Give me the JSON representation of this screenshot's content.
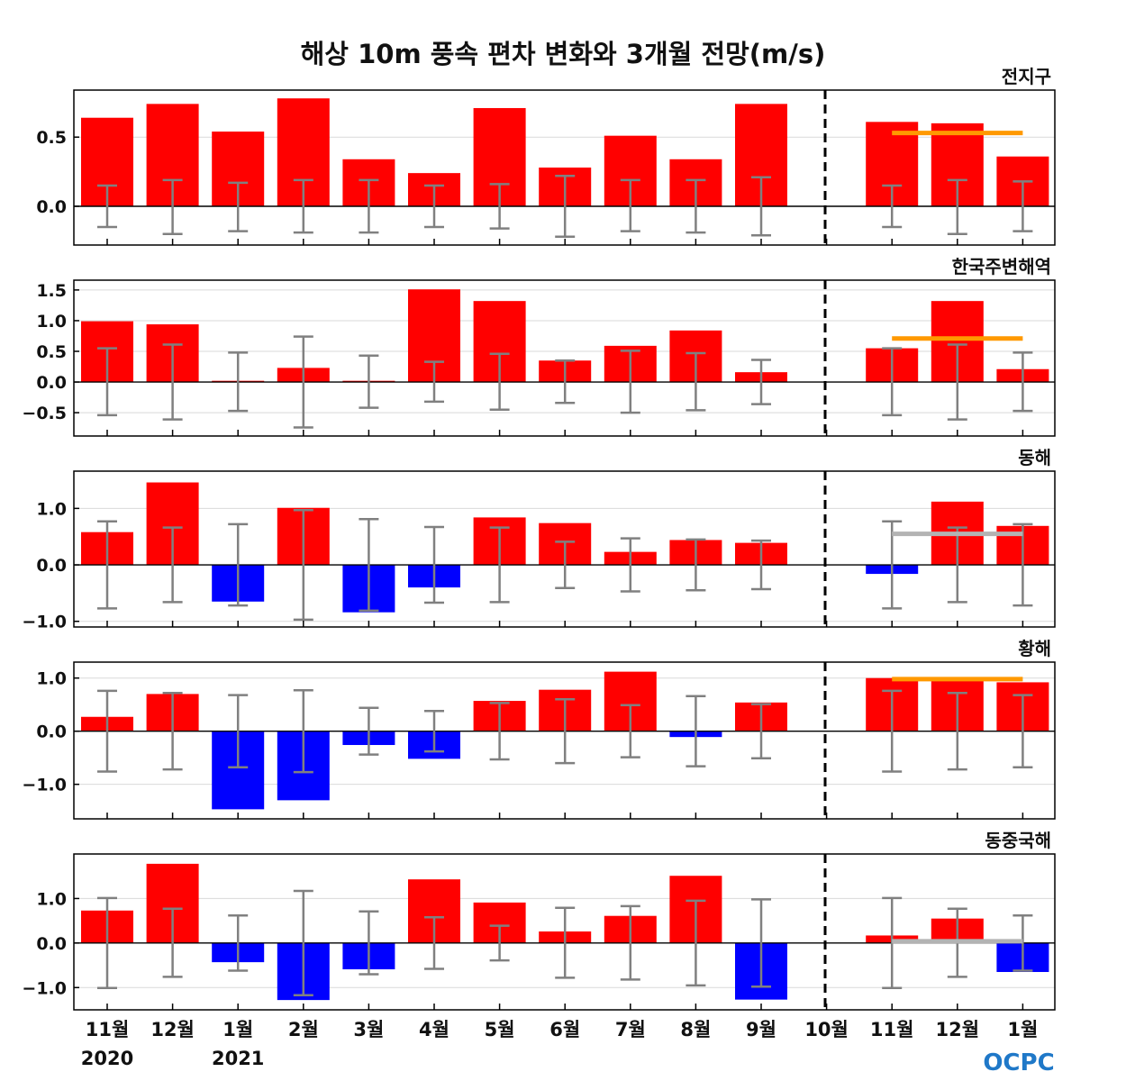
{
  "title": "해상 10m 풍속 편차 변화와 3개월 전망(m/s)",
  "logo_text": "OCPC",
  "colors": {
    "positive": "#ff0000",
    "negative": "#0000ff",
    "errorbar": "#808080",
    "forecast_line_orange": "#ff9900",
    "forecast_line_gray": "#b3b3b3",
    "grid": "#d9d9d9"
  },
  "x_labels": [
    "11월",
    "12월",
    "1월",
    "2월",
    "3월",
    "4월",
    "5월",
    "6월",
    "7월",
    "8월",
    "9월",
    "10월",
    "11월",
    "12월",
    "1월"
  ],
  "year_labels": [
    {
      "index": 0,
      "text": "2020"
    },
    {
      "index": 2,
      "text": "2021"
    }
  ],
  "chart_data": [
    {
      "type": "bar",
      "title": "전지구",
      "categories": [
        "11월",
        "12월",
        "1월",
        "2월",
        "3월",
        "4월",
        "5월",
        "6월",
        "7월",
        "8월",
        "9월",
        "10월",
        "11월",
        "12월",
        "1월"
      ],
      "values": [
        0.64,
        0.74,
        0.54,
        0.78,
        0.34,
        0.24,
        0.71,
        0.28,
        0.51,
        0.34,
        0.74,
        0.0,
        0.61,
        0.6,
        0.36
      ],
      "error_low": [
        -0.15,
        -0.2,
        -0.18,
        -0.19,
        -0.19,
        -0.15,
        -0.16,
        -0.22,
        -0.18,
        -0.19,
        -0.21,
        null,
        -0.15,
        -0.2,
        -0.18
      ],
      "error_high": [
        0.15,
        0.19,
        0.17,
        0.19,
        0.19,
        0.15,
        0.16,
        0.22,
        0.19,
        0.19,
        0.21,
        null,
        0.15,
        0.19,
        0.18
      ],
      "forecast_line": {
        "value": 0.53,
        "color": "orange"
      },
      "ylim": [
        -0.28,
        0.84
      ],
      "yticks": [
        0.0,
        0.5
      ],
      "ytick_labels": [
        "0.0",
        "0.5"
      ]
    },
    {
      "type": "bar",
      "title": "한국주변해역",
      "categories": [
        "11월",
        "12월",
        "1월",
        "2월",
        "3월",
        "4월",
        "5월",
        "6월",
        "7월",
        "8월",
        "9월",
        "10월",
        "11월",
        "12월",
        "1월"
      ],
      "values": [
        0.99,
        0.94,
        0.02,
        0.23,
        0.02,
        1.51,
        1.32,
        0.35,
        0.59,
        0.84,
        0.16,
        0.0,
        0.55,
        1.32,
        0.21
      ],
      "error_low": [
        -0.54,
        -0.61,
        -0.47,
        -0.74,
        -0.42,
        -0.32,
        -0.45,
        -0.34,
        -0.5,
        -0.46,
        -0.36,
        null,
        -0.54,
        -0.61,
        -0.47
      ],
      "error_high": [
        0.55,
        0.61,
        0.48,
        0.74,
        0.43,
        0.33,
        0.46,
        0.35,
        0.51,
        0.47,
        0.36,
        null,
        0.55,
        0.61,
        0.48
      ],
      "forecast_line": {
        "value": 0.71,
        "color": "orange"
      },
      "ylim": [
        -0.88,
        1.66
      ],
      "yticks": [
        -0.5,
        0.0,
        0.5,
        1.0,
        1.5
      ],
      "ytick_labels": [
        "−0.5",
        "0.0",
        "0.5",
        "1.0",
        "1.5"
      ]
    },
    {
      "type": "bar",
      "title": "동해",
      "categories": [
        "11월",
        "12월",
        "1월",
        "2월",
        "3월",
        "4월",
        "5월",
        "6월",
        "7월",
        "8월",
        "9월",
        "10월",
        "11월",
        "12월",
        "1월"
      ],
      "values": [
        0.58,
        1.46,
        -0.65,
        1.01,
        -0.84,
        -0.4,
        0.84,
        0.74,
        0.23,
        0.44,
        0.39,
        0.0,
        -0.16,
        1.12,
        0.69
      ],
      "error_low": [
        -0.77,
        -0.66,
        -0.72,
        -0.97,
        -0.81,
        -0.67,
        -0.66,
        -0.41,
        -0.47,
        -0.45,
        -0.43,
        null,
        -0.77,
        -0.66,
        -0.72
      ],
      "error_high": [
        0.77,
        0.66,
        0.72,
        0.97,
        0.81,
        0.67,
        0.66,
        0.41,
        0.47,
        0.45,
        0.43,
        null,
        0.77,
        0.66,
        0.72
      ],
      "forecast_line": {
        "value": 0.55,
        "color": "gray"
      },
      "ylim": [
        -1.1,
        1.66
      ],
      "yticks": [
        -1.0,
        0.0,
        1.0
      ],
      "ytick_labels": [
        "−1.0",
        "0.0",
        "1.0"
      ]
    },
    {
      "type": "bar",
      "title": "황해",
      "categories": [
        "11월",
        "12월",
        "1월",
        "2월",
        "3월",
        "4월",
        "5월",
        "6월",
        "7월",
        "8월",
        "9월",
        "10월",
        "11월",
        "12월",
        "1월"
      ],
      "values": [
        0.27,
        0.7,
        -1.47,
        -1.3,
        -0.26,
        -0.52,
        0.57,
        0.78,
        1.12,
        -0.11,
        0.54,
        0.0,
        1.0,
        0.96,
        0.92
      ],
      "error_low": [
        -0.76,
        -0.72,
        -0.68,
        -0.77,
        -0.44,
        -0.38,
        -0.53,
        -0.6,
        -0.49,
        -0.66,
        -0.51,
        null,
        -0.76,
        -0.72,
        -0.68
      ],
      "error_high": [
        0.76,
        0.72,
        0.68,
        0.77,
        0.44,
        0.38,
        0.53,
        0.6,
        0.49,
        0.66,
        0.51,
        null,
        0.76,
        0.72,
        0.68
      ],
      "forecast_line": {
        "value": 0.98,
        "color": "orange"
      },
      "ylim": [
        -1.65,
        1.3
      ],
      "yticks": [
        -1.0,
        0.0,
        1.0
      ],
      "ytick_labels": [
        "−1.0",
        "0.0",
        "1.0"
      ]
    },
    {
      "type": "bar",
      "title": "동중국해",
      "categories": [
        "11월",
        "12월",
        "1월",
        "2월",
        "3월",
        "4월",
        "5월",
        "6월",
        "7월",
        "8월",
        "9월",
        "10월",
        "11월",
        "12월",
        "1월"
      ],
      "values": [
        0.73,
        1.78,
        -0.43,
        -1.28,
        -0.59,
        1.43,
        0.91,
        0.26,
        0.61,
        1.51,
        -1.27,
        0.0,
        0.17,
        0.55,
        -0.65
      ],
      "error_low": [
        -1.01,
        -0.76,
        -0.62,
        -1.17,
        -0.7,
        -0.58,
        -0.39,
        -0.78,
        -0.82,
        -0.95,
        -0.98,
        null,
        -1.01,
        -0.76,
        -0.62
      ],
      "error_high": [
        1.01,
        0.77,
        0.62,
        1.17,
        0.71,
        0.58,
        0.39,
        0.79,
        0.83,
        0.95,
        0.98,
        null,
        1.01,
        0.77,
        0.62
      ],
      "forecast_line": {
        "value": 0.04,
        "color": "gray"
      },
      "ylim": [
        -1.5,
        2.0
      ],
      "yticks": [
        -1.0,
        0.0,
        1.0
      ],
      "ytick_labels": [
        "−1.0",
        "0.0",
        "1.0"
      ]
    }
  ]
}
